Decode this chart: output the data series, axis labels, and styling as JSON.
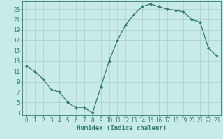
{
  "title": "",
  "xlabel": "Humidex (Indice chaleur)",
  "ylabel": "",
  "x": [
    0,
    1,
    2,
    3,
    4,
    5,
    6,
    7,
    8,
    9,
    10,
    11,
    12,
    13,
    14,
    15,
    16,
    17,
    18,
    19,
    20,
    21,
    22,
    23
  ],
  "y": [
    12,
    11,
    9.5,
    7.5,
    7,
    5,
    4,
    4,
    3,
    8,
    13,
    17,
    20,
    22,
    23.5,
    24,
    23.5,
    23,
    22.8,
    22.5,
    21,
    20.5,
    15.5,
    14
  ],
  "line_color": "#2d7d6e",
  "marker": "D",
  "marker_size": 2.0,
  "bg_color": "#c8eae8",
  "grid_color": "#a8ceca",
  "axis_color": "#2d7d6e",
  "tick_label_color": "#2d7d6e",
  "xlabel_color": "#2d7d6e",
  "ylim": [
    2.5,
    24.5
  ],
  "xlim": [
    -0.5,
    23.5
  ],
  "yticks": [
    3,
    5,
    7,
    9,
    11,
    13,
    15,
    17,
    19,
    21,
    23
  ],
  "xticks": [
    0,
    1,
    2,
    3,
    4,
    5,
    6,
    7,
    8,
    9,
    10,
    11,
    12,
    13,
    14,
    15,
    16,
    17,
    18,
    19,
    20,
    21,
    22,
    23
  ],
  "fontsize_ticks": 5.5,
  "fontsize_xlabel": 6.5,
  "linewidth": 0.9
}
